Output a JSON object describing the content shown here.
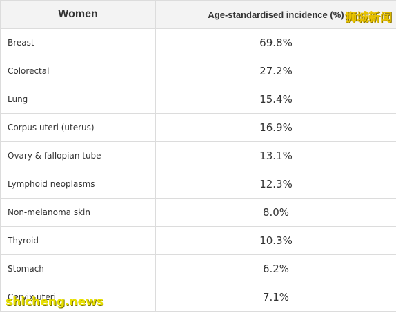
{
  "table": {
    "headers": [
      "Women",
      "Age-standardised incidence (%)"
    ],
    "rows": [
      {
        "cancer": "Breast",
        "value": "69.8%"
      },
      {
        "cancer": "Colorectal",
        "value": "27.2%"
      },
      {
        "cancer": "Lung",
        "value": "15.4%"
      },
      {
        "cancer": "Corpus uteri (uterus)",
        "value": "16.9%"
      },
      {
        "cancer": "Ovary & fallopian tube",
        "value": "13.1%"
      },
      {
        "cancer": "Lymphoid neoplasms",
        "value": "12.3%"
      },
      {
        "cancer": "Non-melanoma skin",
        "value": "8.0%"
      },
      {
        "cancer": "Thyroid",
        "value": "10.3%"
      },
      {
        "cancer": "Stomach",
        "value": "6.2%"
      },
      {
        "cancer": "Cervix uteri",
        "value": "7.1%"
      }
    ]
  },
  "watermarks": {
    "top": "狮城新闻",
    "bottom": "shicheng.news"
  },
  "colors": {
    "header_bg": "#f3f3f3",
    "border": "#dcdcdc",
    "text": "#333333",
    "watermark": "#e8c200"
  }
}
